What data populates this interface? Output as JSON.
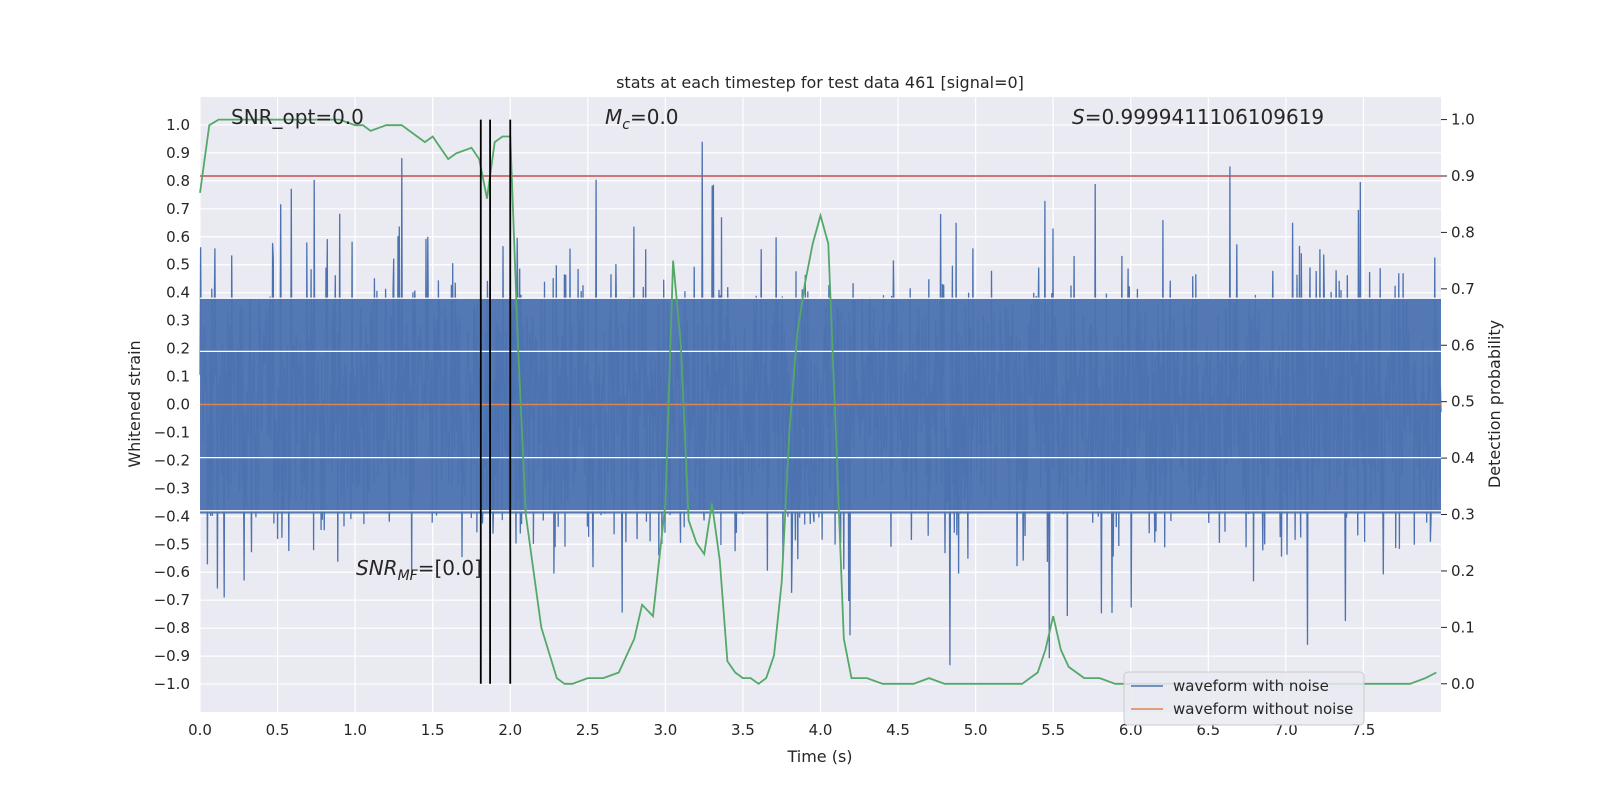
{
  "chart_data": {
    "type": "line",
    "title": "stats at each timestep for test data 461 [signal=0]",
    "xlabel": "Time (s)",
    "ylabel": "Whitened strain",
    "y2label": "Detection probability",
    "xlim": [
      0.0,
      8.0
    ],
    "ylim": [
      -1.1,
      1.1
    ],
    "y2lim": [
      -0.05,
      1.04
    ],
    "xticks": [
      "0.0",
      "0.5",
      "1.0",
      "1.5",
      "2.0",
      "2.5",
      "3.0",
      "3.5",
      "4.0",
      "4.5",
      "5.0",
      "5.5",
      "6.0",
      "6.5",
      "7.0",
      "7.5"
    ],
    "xtick_values": [
      0,
      0.5,
      1,
      1.5,
      2,
      2.5,
      3,
      3.5,
      4,
      4.5,
      5,
      5.5,
      6,
      6.5,
      7,
      7.5
    ],
    "yticks": [
      "1.0",
      "0.9",
      "0.8",
      "0.7",
      "0.6",
      "0.5",
      "0.4",
      "0.3",
      "0.2",
      "0.1",
      "0.0",
      "−0.1",
      "−0.2",
      "−0.3",
      "−0.4",
      "−0.5",
      "−0.6",
      "−0.7",
      "−0.8",
      "−0.9",
      "−1.0"
    ],
    "ytick_values": [
      1.0,
      0.9,
      0.8,
      0.7,
      0.6,
      0.5,
      0.4,
      0.3,
      0.2,
      0.1,
      0.0,
      -0.1,
      -0.2,
      -0.3,
      -0.4,
      -0.5,
      -0.6,
      -0.7,
      -0.8,
      -0.9,
      -1.0
    ],
    "y2ticks": [
      "1.0",
      "0.9",
      "0.8",
      "0.7",
      "0.6",
      "0.5",
      "0.4",
      "0.3",
      "0.2",
      "0.1",
      "0.0"
    ],
    "y2tick_values": [
      1.0,
      0.9,
      0.8,
      0.7,
      0.6,
      0.5,
      0.4,
      0.3,
      0.2,
      0.1,
      0.0
    ],
    "grid": true,
    "background": "#eaeaf2",
    "legend_position": "bottom-right",
    "annotations": {
      "snr_opt": "SNR_opt=0.0",
      "mc_sym": "M",
      "mc_sub": "c",
      "mc_val": "=0.0",
      "s_sym": "S",
      "s_val": "=0.9999411106109619",
      "snr_mf_sym": "SNR",
      "snr_mf_sub": "MF",
      "snr_mf_val": "=[0.0]"
    },
    "vertical_lines": [
      1.81,
      1.87,
      2.0
    ],
    "threshold_y2": 0.9,
    "series": [
      {
        "name": "waveform with noise",
        "color": "#4c72b0",
        "kind": "noise",
        "amplitude": 0.35,
        "peak_max": 0.94,
        "peak_min": -1.0
      },
      {
        "name": "waveform without noise",
        "color": "#dd8452",
        "kind": "flat",
        "y": 0.0
      },
      {
        "color": "#55a868",
        "axis": "y2",
        "x": [
          0.0,
          0.06,
          0.12,
          0.2,
          0.3,
          0.4,
          0.5,
          0.6,
          0.7,
          0.8,
          0.9,
          1.0,
          1.05,
          1.1,
          1.2,
          1.3,
          1.4,
          1.45,
          1.5,
          1.6,
          1.65,
          1.75,
          1.8,
          1.85,
          1.9,
          1.95,
          2.0,
          2.05,
          2.1,
          2.15,
          2.2,
          2.3,
          2.35,
          2.4,
          2.5,
          2.6,
          2.7,
          2.8,
          2.85,
          2.92,
          3.0,
          3.05,
          3.1,
          3.15,
          3.2,
          3.25,
          3.3,
          3.35,
          3.4,
          3.45,
          3.5,
          3.55,
          3.6,
          3.65,
          3.7,
          3.75,
          3.8,
          3.85,
          3.9,
          3.95,
          4.0,
          4.05,
          4.1,
          4.15,
          4.2,
          4.3,
          4.4,
          4.5,
          4.6,
          4.7,
          4.8,
          4.9,
          5.0,
          5.1,
          5.2,
          5.3,
          5.35,
          5.4,
          5.45,
          5.5,
          5.55,
          5.6,
          5.7,
          5.8,
          5.9,
          6.0,
          6.2,
          6.5,
          6.8,
          7.0,
          7.5,
          7.8,
          7.9,
          7.97
        ],
        "y": [
          0.87,
          0.99,
          1.0,
          1.0,
          1.0,
          1.0,
          1.0,
          1.0,
          1.0,
          1.0,
          1.0,
          0.99,
          0.99,
          0.98,
          0.99,
          0.99,
          0.97,
          0.96,
          0.97,
          0.93,
          0.94,
          0.95,
          0.93,
          0.86,
          0.96,
          0.97,
          0.97,
          0.6,
          0.3,
          0.2,
          0.1,
          0.01,
          0.0,
          0.0,
          0.01,
          0.01,
          0.02,
          0.08,
          0.14,
          0.12,
          0.32,
          0.75,
          0.6,
          0.29,
          0.25,
          0.23,
          0.32,
          0.22,
          0.04,
          0.02,
          0.01,
          0.01,
          0.0,
          0.01,
          0.05,
          0.18,
          0.45,
          0.62,
          0.71,
          0.78,
          0.83,
          0.78,
          0.44,
          0.08,
          0.01,
          0.01,
          0.0,
          0.0,
          0.0,
          0.01,
          0.0,
          0.0,
          0.0,
          0.0,
          0.0,
          0.0,
          0.01,
          0.02,
          0.06,
          0.12,
          0.06,
          0.03,
          0.01,
          0.01,
          0.0,
          0.0,
          0.0,
          0.0,
          0.0,
          0.0,
          0.0,
          0.0,
          0.01,
          0.02
        ]
      }
    ]
  }
}
